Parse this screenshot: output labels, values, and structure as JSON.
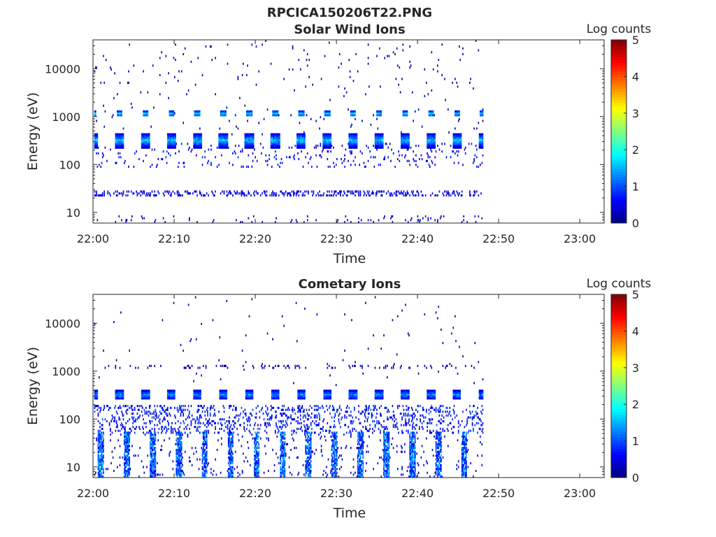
{
  "figure_title": "RPCICA150206T22.PNG",
  "colorbar": {
    "label": "Log counts",
    "ticks": [
      "0",
      "1",
      "2",
      "3",
      "4",
      "5"
    ],
    "range": [
      0,
      5
    ],
    "colormap": "jet"
  },
  "chart_data": [
    {
      "type": "heatmap",
      "title": "Solar Wind Ions",
      "xlabel": "Time",
      "ylabel": "Energy (eV)",
      "x_ticks": [
        "22:00",
        "22:10",
        "22:20",
        "22:30",
        "22:40",
        "22:50",
        "23:00"
      ],
      "y_ticks": [
        "10",
        "100",
        "1000",
        "10000"
      ],
      "y_scale": "log",
      "xlim": [
        "22:00",
        "23:03"
      ],
      "ylim": [
        6,
        40000
      ],
      "data_end": "22:48",
      "sweep_period_min": 3.2,
      "features": [
        {
          "name": "beam",
          "energy_eV": 1150,
          "log_counts": 1.9
        },
        {
          "name": "beam",
          "energy_eV": 320,
          "log_counts": 2.0
        },
        {
          "name": "low energy",
          "energy_eV": 25,
          "log_counts": 0.5
        },
        {
          "name": "low energy",
          "energy_eV": 8,
          "log_counts": 0.3
        }
      ]
    },
    {
      "type": "heatmap",
      "title": "Cometary Ions",
      "xlabel": "Time",
      "ylabel": "Energy (eV)",
      "x_ticks": [
        "22:00",
        "22:10",
        "22:20",
        "22:30",
        "22:40",
        "22:50",
        "23:00"
      ],
      "y_ticks": [
        "10",
        "100",
        "1000",
        "10000"
      ],
      "y_scale": "log",
      "xlim": [
        "22:00",
        "23:03"
      ],
      "ylim": [
        6,
        40000
      ],
      "data_end": "22:48",
      "sweep_period_min": 3.2,
      "features": [
        {
          "name": "band",
          "energy_eV": 320,
          "log_counts": 1.7
        },
        {
          "name": "band",
          "energy_eV": 90,
          "log_counts": 0.8
        },
        {
          "name": "column",
          "energy_eV": 15,
          "log_counts": 1.8
        },
        {
          "name": "isolated",
          "energy_eV": 1200,
          "log_counts": 0.3
        }
      ]
    }
  ]
}
